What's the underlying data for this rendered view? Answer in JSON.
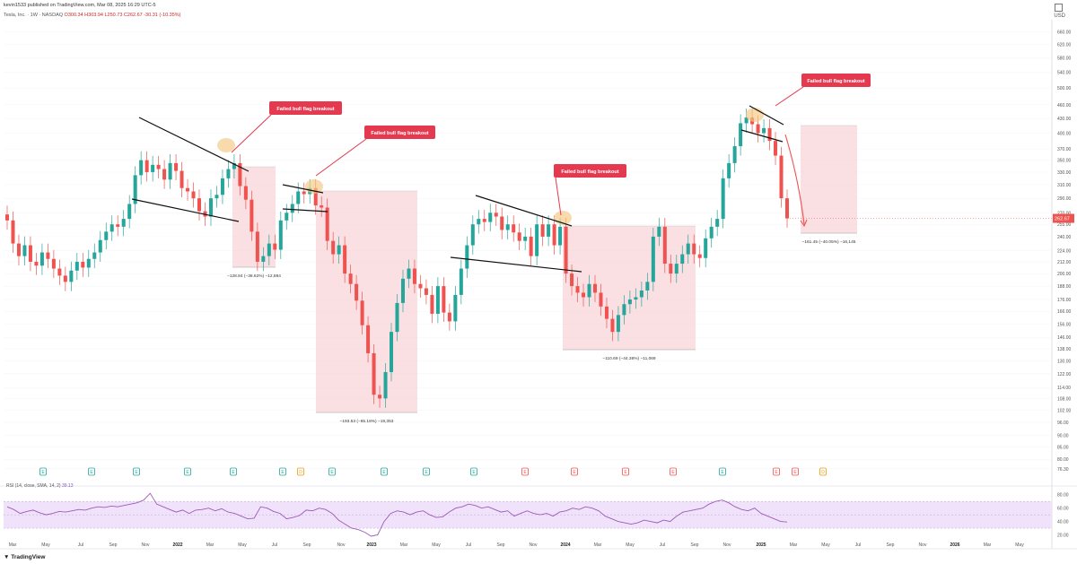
{
  "header": {
    "published": "kevin1533 published on TradingView.com, Mar 08, 2025 16:29 UTC-5",
    "symbol_line": "Tesla, Inc. · 1W · NASDAQ",
    "ohlc": "O300.34 H303.94 L250.73 C262.67 -30.31 (-10.35%)",
    "currency": "USD"
  },
  "footer": {
    "logo": "TradingView"
  },
  "rsi": {
    "label": "RSI (14, close, SMA, 14, 2)",
    "value": "39.13",
    "ticks": [
      "80.00",
      "60.00",
      "40.00",
      "20.00"
    ],
    "values": [
      62,
      58,
      52,
      55,
      57,
      53,
      50,
      52,
      55,
      54,
      56,
      58,
      57,
      60,
      62,
      61,
      63,
      62,
      64,
      66,
      68,
      72,
      82,
      66,
      62,
      58,
      54,
      57,
      52,
      57,
      58,
      60,
      56,
      59,
      54,
      52,
      48,
      44,
      45,
      62,
      60,
      55,
      52,
      44,
      46,
      49,
      57,
      56,
      60,
      58,
      52,
      42,
      36,
      30,
      28,
      24,
      18,
      20,
      40,
      52,
      56,
      54,
      50,
      54,
      56,
      50,
      46,
      47,
      54,
      60,
      62,
      66,
      64,
      60,
      62,
      58,
      54,
      56,
      48,
      52,
      56,
      52,
      50,
      52,
      48,
      54,
      56,
      60,
      58,
      62,
      60,
      56,
      48,
      44,
      40,
      38,
      36,
      38,
      42,
      40,
      38,
      42,
      40,
      48,
      54,
      56,
      58,
      60,
      66,
      70,
      72,
      68,
      62,
      58,
      56,
      60,
      52,
      48,
      44,
      40,
      39.13
    ]
  },
  "chart_data": {
    "type": "candlestick",
    "title": "Tesla, Inc. · 1W · NASDAQ",
    "scale": "log",
    "ylim": [
      72,
      700
    ],
    "y_ticks": [
      660,
      620,
      580,
      540,
      500,
      460,
      430,
      400,
      370,
      350,
      330,
      310,
      290,
      270,
      255,
      240,
      224,
      212,
      200,
      188,
      176,
      166,
      156,
      146,
      138,
      130,
      122,
      114,
      108,
      102,
      96,
      90,
      85,
      80,
      76.3
    ],
    "y_tick_labels": [
      "660.00",
      "620.00",
      "580.00",
      "540.00",
      "500.00",
      "460.00",
      "430.00",
      "400.00",
      "370.00",
      "350.00",
      "330.00",
      "310.00",
      "290.00",
      "270.00",
      "255.00",
      "240.00",
      "224.00",
      "212.00",
      "200.00",
      "188.00",
      "176.00",
      "166.00",
      "156.00",
      "146.00",
      "138.00",
      "130.00",
      "122.00",
      "114.00",
      "108.00",
      "102.00",
      "96.00",
      "90.00",
      "85.00",
      "80.00",
      "76.30"
    ],
    "x_ticks": [
      "Mar",
      "May",
      "Jul",
      "Sep",
      "Nov",
      "2022",
      "Mar",
      "May",
      "Jul",
      "Sep",
      "Nov",
      "2023",
      "Mar",
      "May",
      "Jul",
      "Sep",
      "Nov",
      "2024",
      "Mar",
      "May",
      "Jul",
      "Sep",
      "Nov",
      "2025",
      "Mar",
      "May",
      "Jul",
      "Sep",
      "Nov",
      "2026",
      "Mar",
      "May"
    ],
    "year_ticks": [
      "2022",
      "2023",
      "2024",
      "2025",
      "2026"
    ],
    "last_price": "262.67",
    "closes": [
      260,
      232,
      218,
      230,
      212,
      208,
      222,
      215,
      205,
      198,
      192,
      203,
      212,
      206,
      215,
      222,
      236,
      246,
      255,
      252,
      262,
      282,
      325,
      350,
      330,
      342,
      335,
      318,
      345,
      332,
      305,
      300,
      290,
      272,
      265,
      290,
      295,
      320,
      335,
      345,
      308,
      288,
      246,
      212,
      218,
      232,
      225,
      260,
      270,
      282,
      300,
      296,
      305,
      280,
      277,
      235,
      220,
      230,
      200,
      190,
      175,
      155,
      135,
      110,
      108,
      123,
      150,
      173,
      195,
      205,
      190,
      186,
      180,
      164,
      188,
      165,
      158,
      180,
      205,
      230,
      255,
      262,
      258,
      270,
      265,
      248,
      255,
      245,
      235,
      240,
      218,
      255,
      240,
      255,
      230,
      252,
      200,
      188,
      182,
      178,
      190,
      182,
      170,
      160,
      150,
      163,
      172,
      176,
      178,
      184,
      192,
      240,
      252,
      210,
      200,
      210,
      220,
      232,
      220,
      216,
      238,
      252,
      262,
      320,
      345,
      375,
      420,
      432,
      418,
      400,
      410,
      385,
      358,
      290,
      262.67
    ],
    "annotations": [
      {
        "text": "Failed bull flag breakout"
      },
      {
        "text": "Failed bull flag breakout"
      },
      {
        "text": "Failed bull flag breakout"
      },
      {
        "text": "Failed bull flag breakout"
      }
    ],
    "measures": [
      {
        "text": "−128.84 (−38.62%) −12,884"
      },
      {
        "text": "−193.53 (−65.18%) −19,353"
      },
      {
        "text": "−110.69 (−44.36%) −11,069"
      },
      {
        "text": "−161.45 (−40.05%) −16,145"
      }
    ],
    "events": [
      "E",
      "E",
      "E",
      "E",
      "E",
      "E",
      "D",
      "E",
      "E",
      "E",
      "E",
      "E",
      "E",
      "E",
      "E",
      "E",
      "E",
      "E",
      "D",
      "E"
    ],
    "colors": {
      "up": "#26a69a",
      "down": "#ef5350",
      "annotation": "#e53950",
      "highlight": "#f5c781",
      "measure_fill": "#f8c6cc",
      "rsi": "#9c5bb5",
      "rsi_band": "#f1e2fb"
    }
  }
}
